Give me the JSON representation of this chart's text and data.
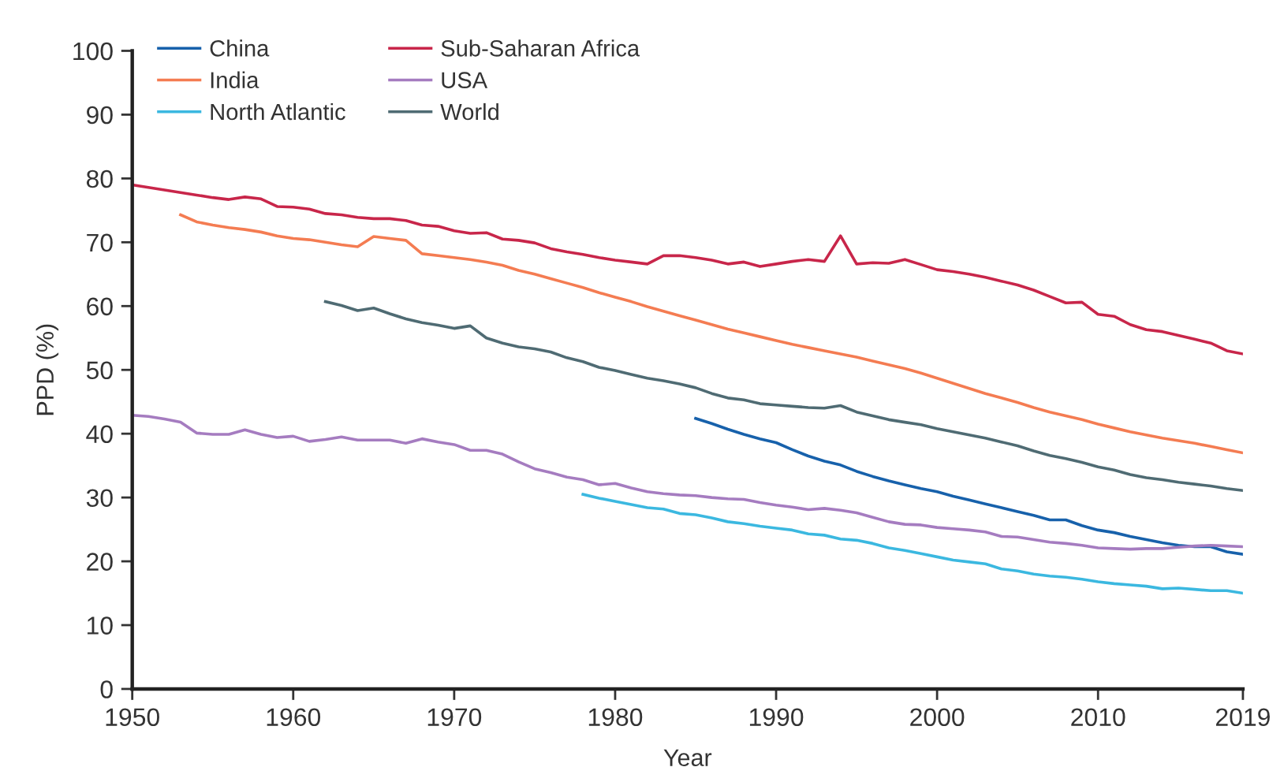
{
  "chart_data": {
    "type": "line",
    "xlabel": "Year",
    "ylabel": "PPD (%)",
    "xlim": [
      1950,
      2019
    ],
    "xticks": [
      1950,
      1960,
      1970,
      1980,
      1990,
      2000,
      2010,
      2019
    ],
    "ylim": [
      0,
      100
    ],
    "yticks": [
      0,
      10,
      20,
      30,
      40,
      50,
      60,
      70,
      80,
      90,
      100
    ],
    "grid": false,
    "legend": "top left",
    "line_style": "solid",
    "marker": "none",
    "series": [
      {
        "name": "China",
        "color": "#1761ab",
        "x": [
          1985,
          1986,
          1987,
          1988,
          1989,
          1990,
          1991,
          1992,
          1993,
          1994,
          1995,
          1996,
          1997,
          1998,
          1999,
          2000,
          2001,
          2002,
          2003,
          2004,
          2005,
          2006,
          2007,
          2008,
          2009,
          2010,
          2011,
          2012,
          2013,
          2014,
          2015,
          2016,
          2017,
          2018,
          2019
        ],
        "values": [
          42.4,
          41.6,
          40.7,
          39.9,
          39.2,
          38.6,
          37.5,
          36.5,
          35.7,
          35.1,
          34.1,
          33.3,
          32.6,
          32.0,
          31.4,
          30.9,
          30.2,
          29.6,
          29.0,
          28.4,
          27.8,
          27.2,
          26.5,
          26.5,
          25.6,
          24.9,
          24.5,
          23.9,
          23.4,
          22.9,
          22.5,
          22.3,
          22.3,
          21.5,
          21.1
        ]
      },
      {
        "name": "India",
        "color": "#f47c52",
        "x": [
          1953,
          1954,
          1955,
          1956,
          1957,
          1958,
          1959,
          1960,
          1961,
          1962,
          1963,
          1964,
          1965,
          1966,
          1967,
          1968,
          1969,
          1970,
          1971,
          1972,
          1973,
          1974,
          1975,
          1976,
          1977,
          1978,
          1979,
          1980,
          1981,
          1982,
          1983,
          1984,
          1985,
          1986,
          1987,
          1988,
          1989,
          1990,
          1991,
          1992,
          1993,
          1994,
          1995,
          1996,
          1997,
          1998,
          1999,
          2000,
          2001,
          2002,
          2003,
          2004,
          2005,
          2006,
          2007,
          2008,
          2009,
          2010,
          2011,
          2012,
          2013,
          2014,
          2015,
          2016,
          2017,
          2018,
          2019
        ],
        "values": [
          74.3,
          73.2,
          72.7,
          72.3,
          72.0,
          71.6,
          71.0,
          70.6,
          70.4,
          70.0,
          69.6,
          69.3,
          70.9,
          70.6,
          70.3,
          68.2,
          67.9,
          67.6,
          67.3,
          66.9,
          66.4,
          65.6,
          65.0,
          64.3,
          63.6,
          62.9,
          62.1,
          61.4,
          60.7,
          59.9,
          59.2,
          58.5,
          57.8,
          57.1,
          56.4,
          55.8,
          55.2,
          54.6,
          54.0,
          53.5,
          53.0,
          52.5,
          52.0,
          51.4,
          50.8,
          50.2,
          49.5,
          48.7,
          47.9,
          47.1,
          46.3,
          45.6,
          44.9,
          44.1,
          43.4,
          42.8,
          42.2,
          41.5,
          40.9,
          40.3,
          39.8,
          39.3,
          38.9,
          38.5,
          38.0,
          37.5,
          37.0
        ]
      },
      {
        "name": "North Atlantic",
        "color": "#3bb8e0",
        "x": [
          1978,
          1979,
          1980,
          1981,
          1982,
          1983,
          1984,
          1985,
          1986,
          1987,
          1988,
          1989,
          1990,
          1991,
          1992,
          1993,
          1994,
          1995,
          1996,
          1997,
          1998,
          1999,
          2000,
          2001,
          2002,
          2003,
          2004,
          2005,
          2006,
          2007,
          2008,
          2009,
          2010,
          2011,
          2012,
          2013,
          2014,
          2015,
          2016,
          2017,
          2018,
          2019
        ],
        "values": [
          30.5,
          29.9,
          29.4,
          28.9,
          28.4,
          28.2,
          27.5,
          27.3,
          26.8,
          26.2,
          25.9,
          25.5,
          25.2,
          24.9,
          24.3,
          24.1,
          23.5,
          23.3,
          22.8,
          22.1,
          21.7,
          21.2,
          20.7,
          20.2,
          19.9,
          19.6,
          18.8,
          18.5,
          18.0,
          17.7,
          17.5,
          17.2,
          16.8,
          16.5,
          16.3,
          16.1,
          15.7,
          15.8,
          15.6,
          15.4,
          15.4,
          15.0
        ]
      },
      {
        "name": "Sub-Saharan Africa",
        "color": "#c8264a",
        "x": [
          1950,
          1951,
          1952,
          1953,
          1954,
          1955,
          1956,
          1957,
          1958,
          1959,
          1960,
          1961,
          1962,
          1963,
          1964,
          1965,
          1966,
          1967,
          1968,
          1969,
          1970,
          1971,
          1972,
          1973,
          1974,
          1975,
          1976,
          1977,
          1978,
          1979,
          1980,
          1981,
          1982,
          1983,
          1984,
          1985,
          1986,
          1987,
          1988,
          1989,
          1990,
          1991,
          1992,
          1993,
          1994,
          1995,
          1996,
          1997,
          1998,
          1999,
          2000,
          2001,
          2002,
          2003,
          2004,
          2005,
          2006,
          2007,
          2008,
          2009,
          2010,
          2011,
          2012,
          2013,
          2014,
          2015,
          2016,
          2017,
          2018,
          2019
        ],
        "values": [
          79.0,
          78.6,
          78.2,
          77.8,
          77.4,
          77.0,
          76.7,
          77.1,
          76.8,
          75.6,
          75.5,
          75.2,
          74.5,
          74.3,
          73.9,
          73.7,
          73.7,
          73.4,
          72.7,
          72.5,
          71.8,
          71.4,
          71.5,
          70.5,
          70.3,
          69.9,
          69.0,
          68.5,
          68.1,
          67.6,
          67.2,
          66.9,
          66.6,
          67.9,
          67.9,
          67.6,
          67.2,
          66.6,
          66.9,
          66.2,
          66.6,
          67.0,
          67.3,
          67.0,
          71.0,
          66.6,
          66.8,
          66.7,
          67.3,
          66.5,
          65.7,
          65.4,
          65.0,
          64.5,
          63.9,
          63.3,
          62.5,
          61.5,
          60.5,
          60.6,
          58.7,
          58.4,
          57.1,
          56.3,
          56.0,
          55.4,
          54.8,
          54.2,
          53.0,
          52.5
        ]
      },
      {
        "name": "USA",
        "color": "#a57cc0",
        "x": [
          1950,
          1951,
          1952,
          1953,
          1954,
          1955,
          1956,
          1957,
          1958,
          1959,
          1960,
          1961,
          1962,
          1963,
          1964,
          1965,
          1966,
          1967,
          1968,
          1969,
          1970,
          1971,
          1972,
          1973,
          1974,
          1975,
          1976,
          1977,
          1978,
          1979,
          1980,
          1981,
          1982,
          1983,
          1984,
          1985,
          1986,
          1987,
          1988,
          1989,
          1990,
          1991,
          1992,
          1993,
          1994,
          1995,
          1996,
          1997,
          1998,
          1999,
          2000,
          2001,
          2002,
          2003,
          2004,
          2005,
          2006,
          2007,
          2008,
          2009,
          2010,
          2011,
          2012,
          2013,
          2014,
          2015,
          2016,
          2017,
          2018,
          2019
        ],
        "values": [
          42.9,
          42.7,
          42.3,
          41.8,
          40.1,
          39.9,
          39.9,
          40.6,
          39.9,
          39.4,
          39.6,
          38.8,
          39.1,
          39.5,
          39.0,
          39.0,
          39.0,
          38.5,
          39.2,
          38.7,
          38.3,
          37.4,
          37.4,
          36.8,
          35.6,
          34.5,
          33.9,
          33.2,
          32.8,
          32.0,
          32.2,
          31.5,
          30.9,
          30.6,
          30.4,
          30.3,
          30.0,
          29.8,
          29.7,
          29.2,
          28.8,
          28.5,
          28.1,
          28.3,
          28.0,
          27.6,
          26.9,
          26.2,
          25.8,
          25.7,
          25.3,
          25.1,
          24.9,
          24.6,
          23.9,
          23.8,
          23.4,
          23.0,
          22.8,
          22.5,
          22.1,
          22.0,
          21.9,
          22.0,
          22.0,
          22.2,
          22.4,
          22.5,
          22.4,
          22.3
        ]
      },
      {
        "name": "World",
        "color": "#4f6b73",
        "x": [
          1962,
          1963,
          1964,
          1965,
          1966,
          1967,
          1968,
          1969,
          1970,
          1971,
          1972,
          1973,
          1974,
          1975,
          1976,
          1977,
          1978,
          1979,
          1980,
          1981,
          1982,
          1983,
          1984,
          1985,
          1986,
          1987,
          1988,
          1989,
          1990,
          1991,
          1992,
          1993,
          1994,
          1995,
          1996,
          1997,
          1998,
          1999,
          2000,
          2001,
          2002,
          2003,
          2004,
          2005,
          2006,
          2007,
          2008,
          2009,
          2010,
          2011,
          2012,
          2013,
          2014,
          2015,
          2016,
          2017,
          2018,
          2019
        ],
        "values": [
          60.7,
          60.1,
          59.3,
          59.7,
          58.8,
          58.0,
          57.4,
          57.0,
          56.5,
          56.9,
          55.0,
          54.2,
          53.6,
          53.3,
          52.8,
          51.9,
          51.3,
          50.4,
          49.9,
          49.3,
          48.7,
          48.3,
          47.8,
          47.2,
          46.3,
          45.6,
          45.3,
          44.7,
          44.5,
          44.3,
          44.1,
          44.0,
          44.4,
          43.4,
          42.8,
          42.2,
          41.8,
          41.4,
          40.8,
          40.3,
          39.8,
          39.3,
          38.7,
          38.1,
          37.3,
          36.6,
          36.1,
          35.5,
          34.8,
          34.3,
          33.6,
          33.1,
          32.8,
          32.4,
          32.1,
          31.8,
          31.4,
          31.1
        ]
      }
    ]
  }
}
